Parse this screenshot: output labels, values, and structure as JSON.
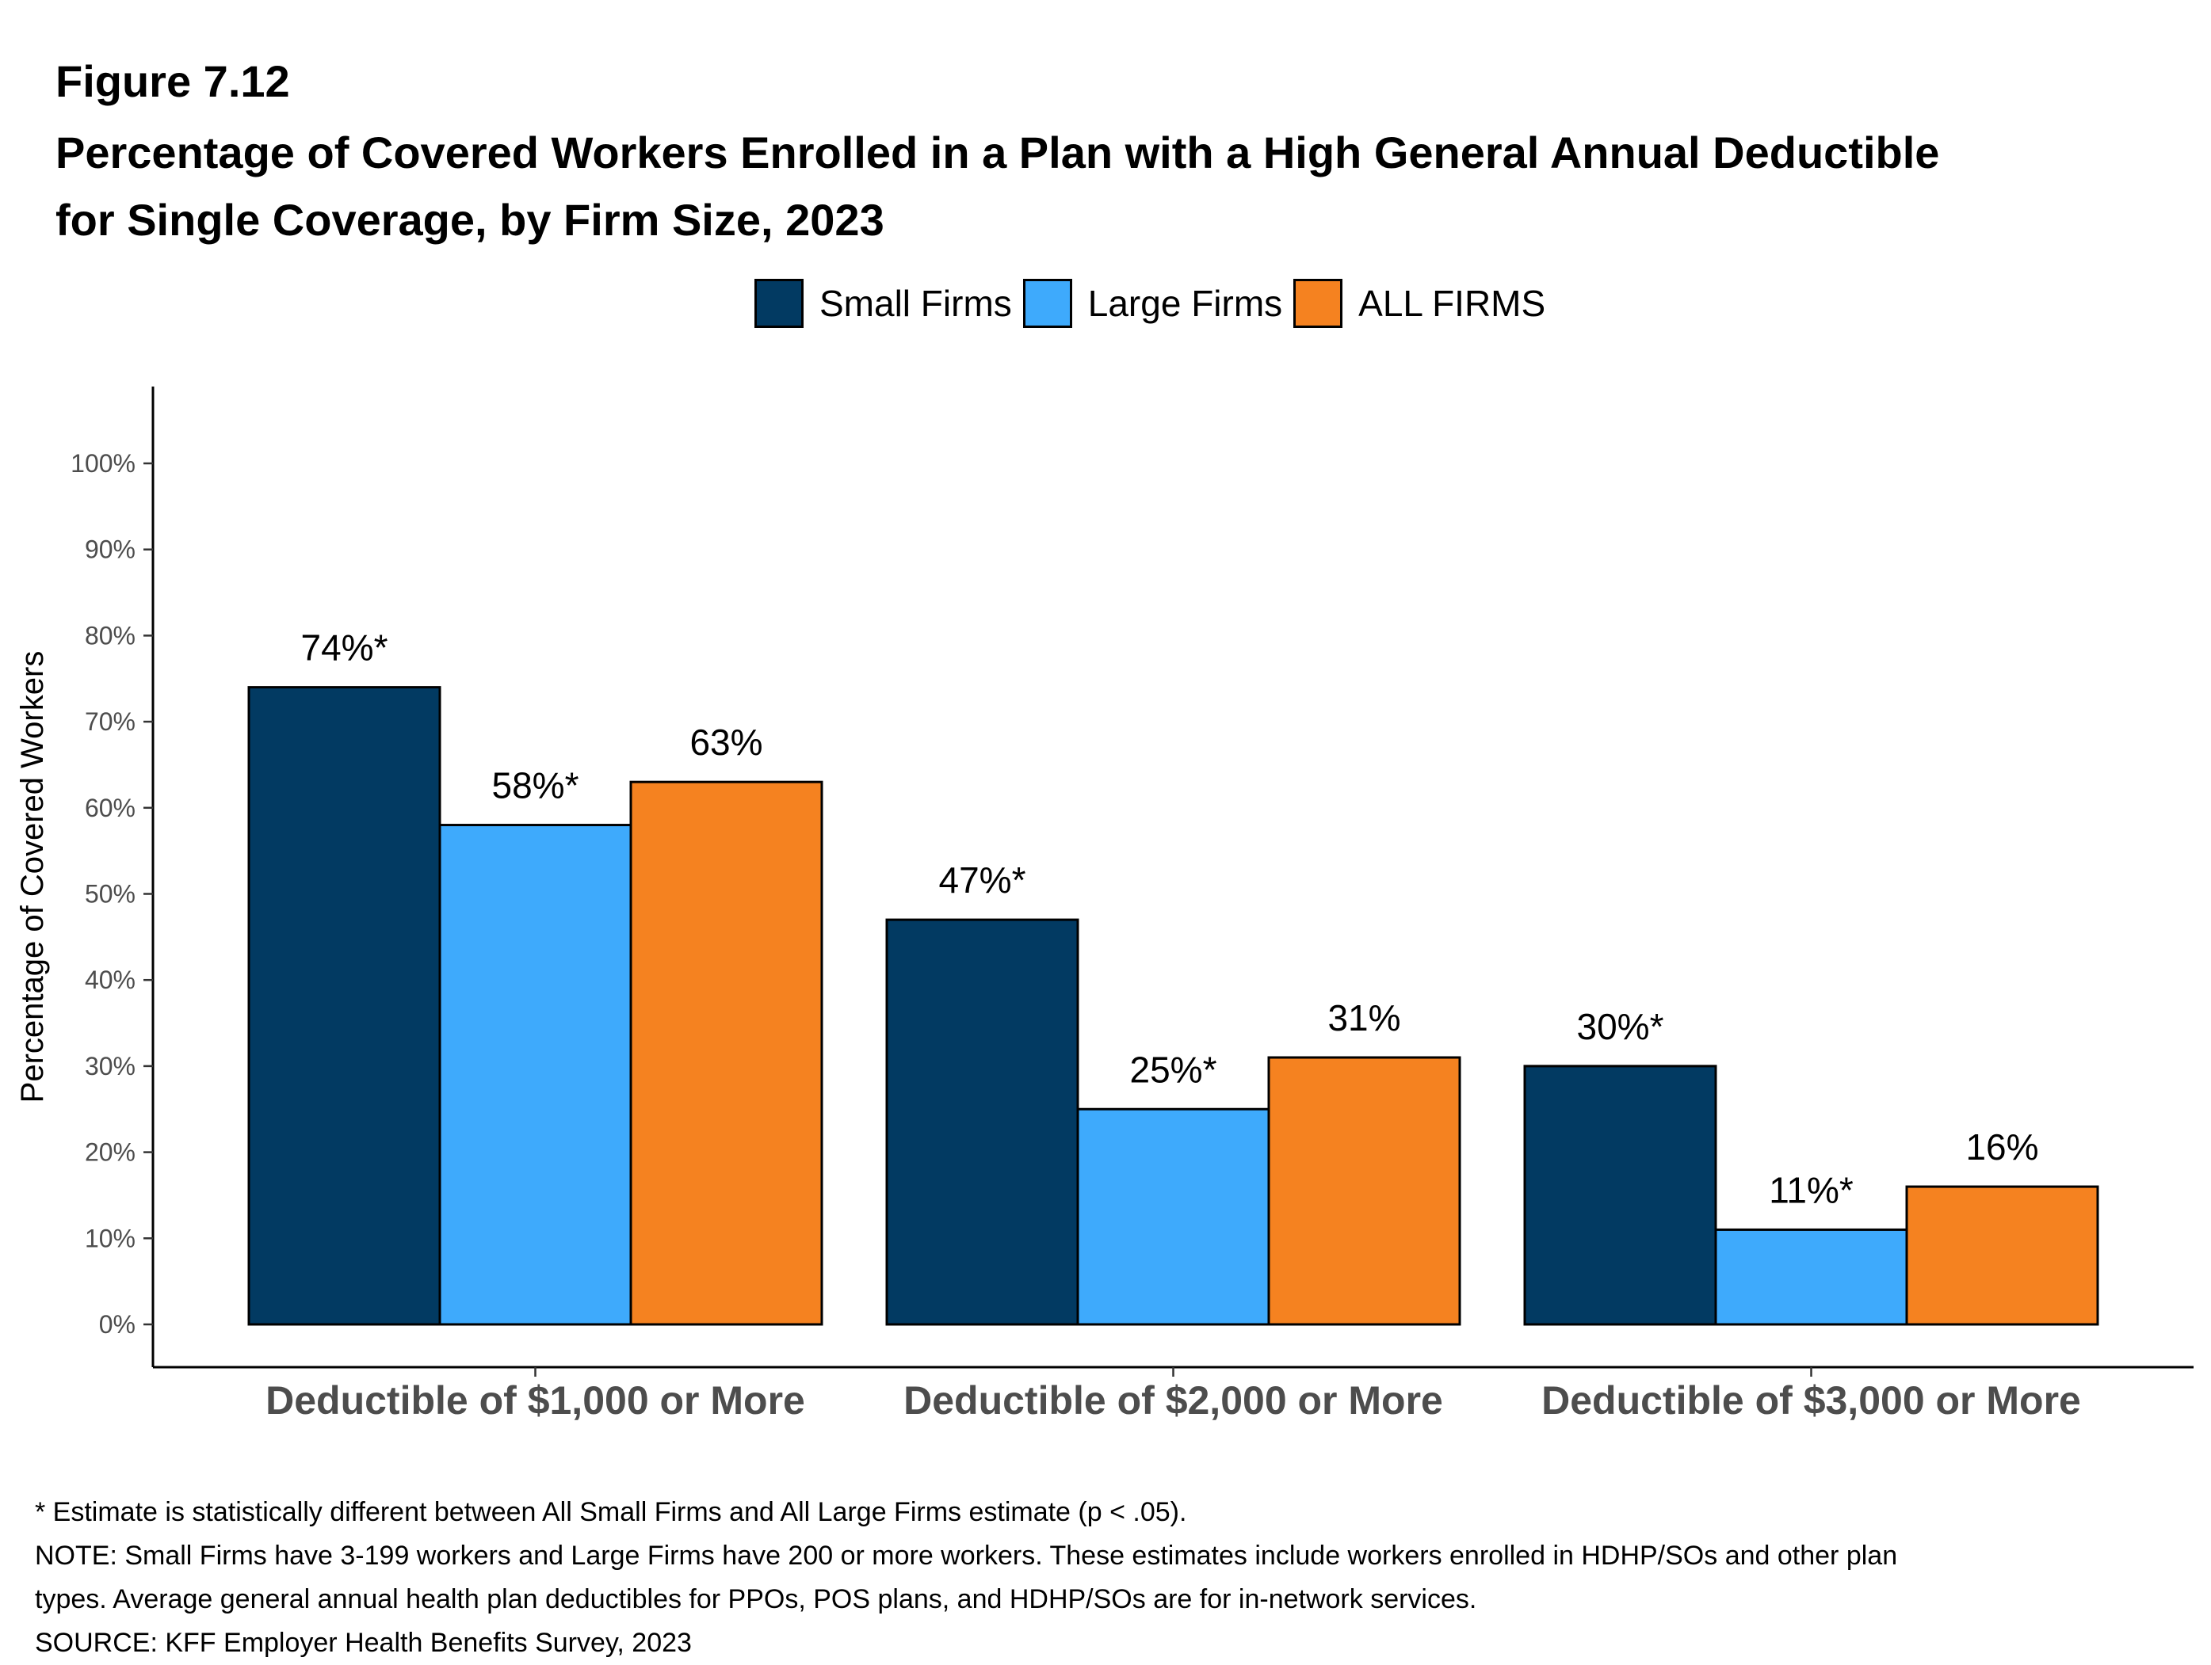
{
  "figure_label": "Figure 7.12",
  "title_lines": [
    "Percentage of Covered Workers Enrolled in a Plan with a High General Annual Deductible",
    "for Single Coverage, by Firm Size, 2023"
  ],
  "legend": [
    {
      "name": "Small Firms",
      "color": "#023a62"
    },
    {
      "name": "Large Firms",
      "color": "#3eaafc"
    },
    {
      "name": "ALL FIRMS",
      "color": "#f58220"
    }
  ],
  "chart_data": {
    "type": "bar",
    "title": "Percentage of Covered Workers Enrolled in a Plan with a High General Annual Deductible for Single Coverage, by Firm Size, 2023",
    "categories": [
      "Deductible of $1,000 or More",
      "Deductible of $2,000 or More",
      "Deductible of $3,000 or More"
    ],
    "series": [
      {
        "name": "Small Firms",
        "color": "#023a62",
        "values": [
          74,
          47,
          30
        ],
        "labels": [
          "74%*",
          "47%*",
          "30%*"
        ]
      },
      {
        "name": "Large Firms",
        "color": "#3eaafc",
        "values": [
          58,
          25,
          11
        ],
        "labels": [
          "58%*",
          "25%*",
          "11%*"
        ]
      },
      {
        "name": "ALL FIRMS",
        "color": "#f58220",
        "values": [
          63,
          31,
          16
        ],
        "labels": [
          "63%",
          "31%",
          "16%"
        ]
      }
    ],
    "xlabel": "",
    "ylabel": "Percentage of Covered Workers",
    "ylim": [
      0,
      100
    ],
    "yticks": [
      "0%",
      "10%",
      "20%",
      "30%",
      "40%",
      "50%",
      "60%",
      "70%",
      "80%",
      "90%",
      "100%"
    ],
    "grid": false,
    "legend_position": "top"
  },
  "footnotes": [
    "* Estimate is statistically different between All Small Firms and All Large Firms estimate (p < .05).",
    "NOTE: Small Firms have 3-199 workers and Large Firms have 200 or more workers. These estimates include workers enrolled in HDHP/SOs and other plan",
    "types. Average general annual health plan deductibles for PPOs, POS plans, and HDHP/SOs are for in-network services.",
    "SOURCE: KFF Employer Health Benefits Survey, 2023"
  ]
}
